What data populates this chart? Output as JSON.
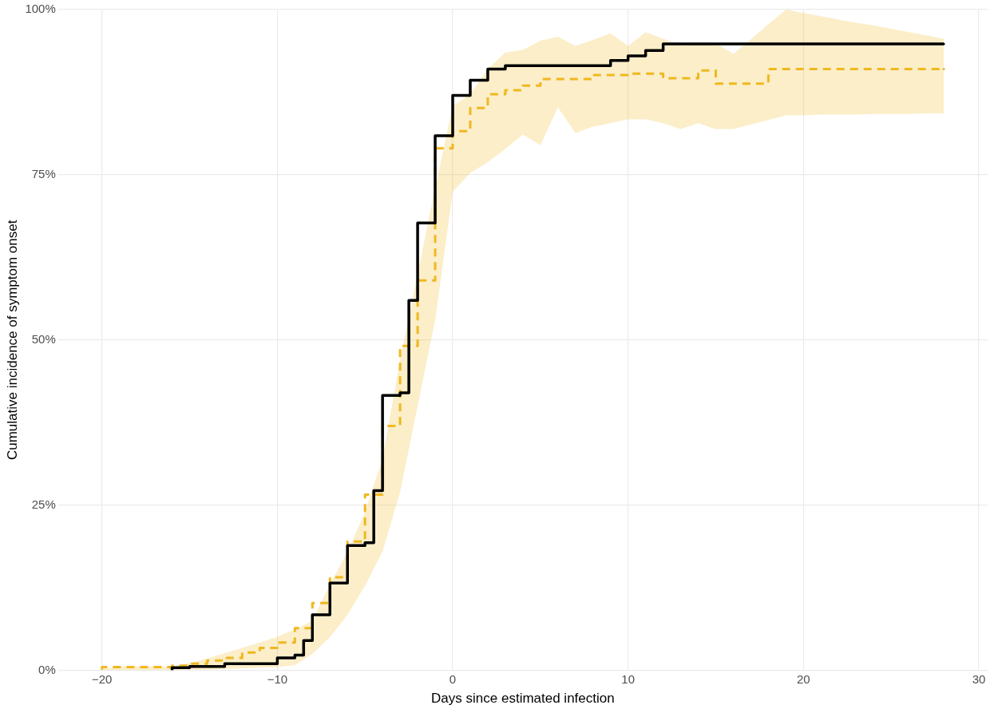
{
  "chart_data": {
    "type": "step",
    "xlabel": "Days since estimated infection",
    "ylabel": "Cumulative incidence of symptom onset",
    "xlim": [
      -22.5,
      30.5
    ],
    "ylim": [
      0,
      100
    ],
    "xticks": [
      {
        "value": -20,
        "label": "−20"
      },
      {
        "value": -10,
        "label": "−10"
      },
      0,
      10,
      20,
      30
    ],
    "yticks": [
      {
        "value": 0,
        "label": "0%"
      },
      {
        "value": 25,
        "label": "25%"
      },
      {
        "value": 50,
        "label": "50%"
      },
      {
        "value": 75,
        "label": "75%"
      },
      {
        "value": 100,
        "label": "100%"
      }
    ],
    "grid": true,
    "legend": false,
    "series": [
      {
        "color": "#efb81f",
        "line_style": "dashed",
        "x": [
          -20,
          -19,
          -18,
          -17,
          -16,
          -15,
          -14,
          -13,
          -12,
          -11,
          -10,
          -9,
          -8,
          -7,
          -6,
          -5,
          -4,
          -3,
          -2,
          -1,
          0,
          1,
          2,
          3,
          4,
          5,
          6,
          7,
          8,
          9,
          10,
          11,
          12,
          13,
          14,
          15,
          16,
          17,
          18,
          19,
          20,
          21,
          22,
          23,
          24,
          25,
          26,
          27,
          28
        ],
        "values": [
          0.1,
          0.5,
          0.5,
          0.5,
          0.5,
          0.7,
          1.0,
          1.5,
          1.9,
          2.7,
          3.4,
          4.2,
          6.4,
          10.2,
          14.1,
          19.5,
          26.6,
          37.0,
          49.1,
          59.0,
          79.0,
          81.6,
          85.1,
          87.2,
          87.8,
          88.5,
          89.5,
          89.5,
          89.5,
          90.1,
          90.1,
          90.3,
          90.3,
          89.6,
          89.6,
          90.8,
          88.8,
          88.8,
          88.8,
          91.0,
          91.0,
          91.0,
          91.0,
          91.0,
          91.0,
          91.0,
          91.0,
          91.0,
          91.0
        ],
        "lower": [
          0,
          0,
          0,
          0,
          0,
          0.1,
          0.1,
          0.2,
          0.3,
          0.4,
          0.5,
          0.8,
          2.5,
          5,
          8.4,
          12.8,
          18,
          27,
          40,
          53,
          72.4,
          75.3,
          76.9,
          78.9,
          81.1,
          79.5,
          85.2,
          81.3,
          82.3,
          82.8,
          83.4,
          83.4,
          82.8,
          81.9,
          82.8,
          81.9,
          81.9,
          82.6,
          83.3,
          84.0,
          84.0,
          84.1,
          84.1,
          84.1,
          84.2,
          84.2,
          84.2,
          84.3,
          84.3
        ],
        "upper": [
          0.2,
          0.6,
          0.6,
          0.6,
          0.6,
          1.1,
          1.8,
          2.6,
          3.4,
          4.2,
          5.1,
          6.2,
          7.5,
          13,
          17.9,
          24,
          32,
          47,
          60,
          73,
          85.4,
          87.2,
          91,
          93.5,
          93.9,
          95.3,
          95.9,
          94.5,
          95.4,
          96.4,
          94.5,
          96.6,
          95.6,
          94.6,
          94.9,
          94.9,
          93.3,
          95.5,
          97.8,
          100,
          99.5,
          99,
          98.5,
          98,
          97.6,
          97.1,
          96.6,
          96.1,
          95.6
        ]
      },
      {
        "color": "#000000",
        "line_style": "solid",
        "x": [
          -16,
          -15,
          -13,
          -10,
          -9,
          -8.5,
          -8,
          -7,
          -6,
          -5,
          -4.5,
          -4,
          -3,
          -2.5,
          -2,
          -1,
          0,
          1,
          2,
          3,
          9,
          10,
          11,
          12,
          13,
          28
        ],
        "values": [
          0,
          0.4,
          0.6,
          1.0,
          1.9,
          2.3,
          4.5,
          8.4,
          13.2,
          18.9,
          19.3,
          27.2,
          41.6,
          42.0,
          56.0,
          67.7,
          80.9,
          87.0,
          89.3,
          91.0,
          91.5,
          92.3,
          93.0,
          93.8,
          94.8,
          94.8
        ]
      }
    ]
  }
}
